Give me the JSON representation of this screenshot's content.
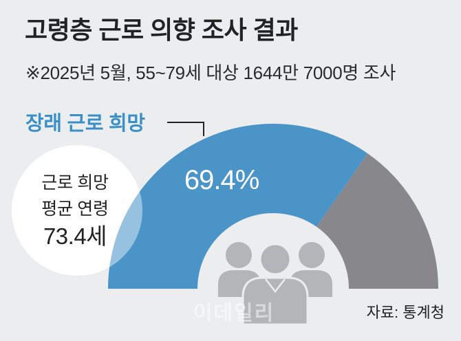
{
  "colors": {
    "background": "#ebedef",
    "text": "#222222",
    "callout_text": "#3a8fc6",
    "icon": "#b3b5b8"
  },
  "icons": {
    "center_icon": "people-group-icon"
  },
  "watermark": "이데일리",
  "chart_data": {
    "type": "pie",
    "semicircle": true,
    "donut": true,
    "title": "고령층 근로 의향 조사 결과",
    "subtitle": "※2025년 5월, 55~79세 대상 1644만 7000명 조사",
    "slices": [
      {
        "name": "장래 근로 희망",
        "value": 69.4,
        "label": "69.4%",
        "color": "#4b94c8"
      },
      {
        "value": 30.6,
        "color": "#88888c"
      }
    ],
    "annotation": {
      "lines": [
        "근로 희망",
        "평균 연령"
      ],
      "value": "73.4세"
    },
    "source": "자료: 통계청"
  }
}
